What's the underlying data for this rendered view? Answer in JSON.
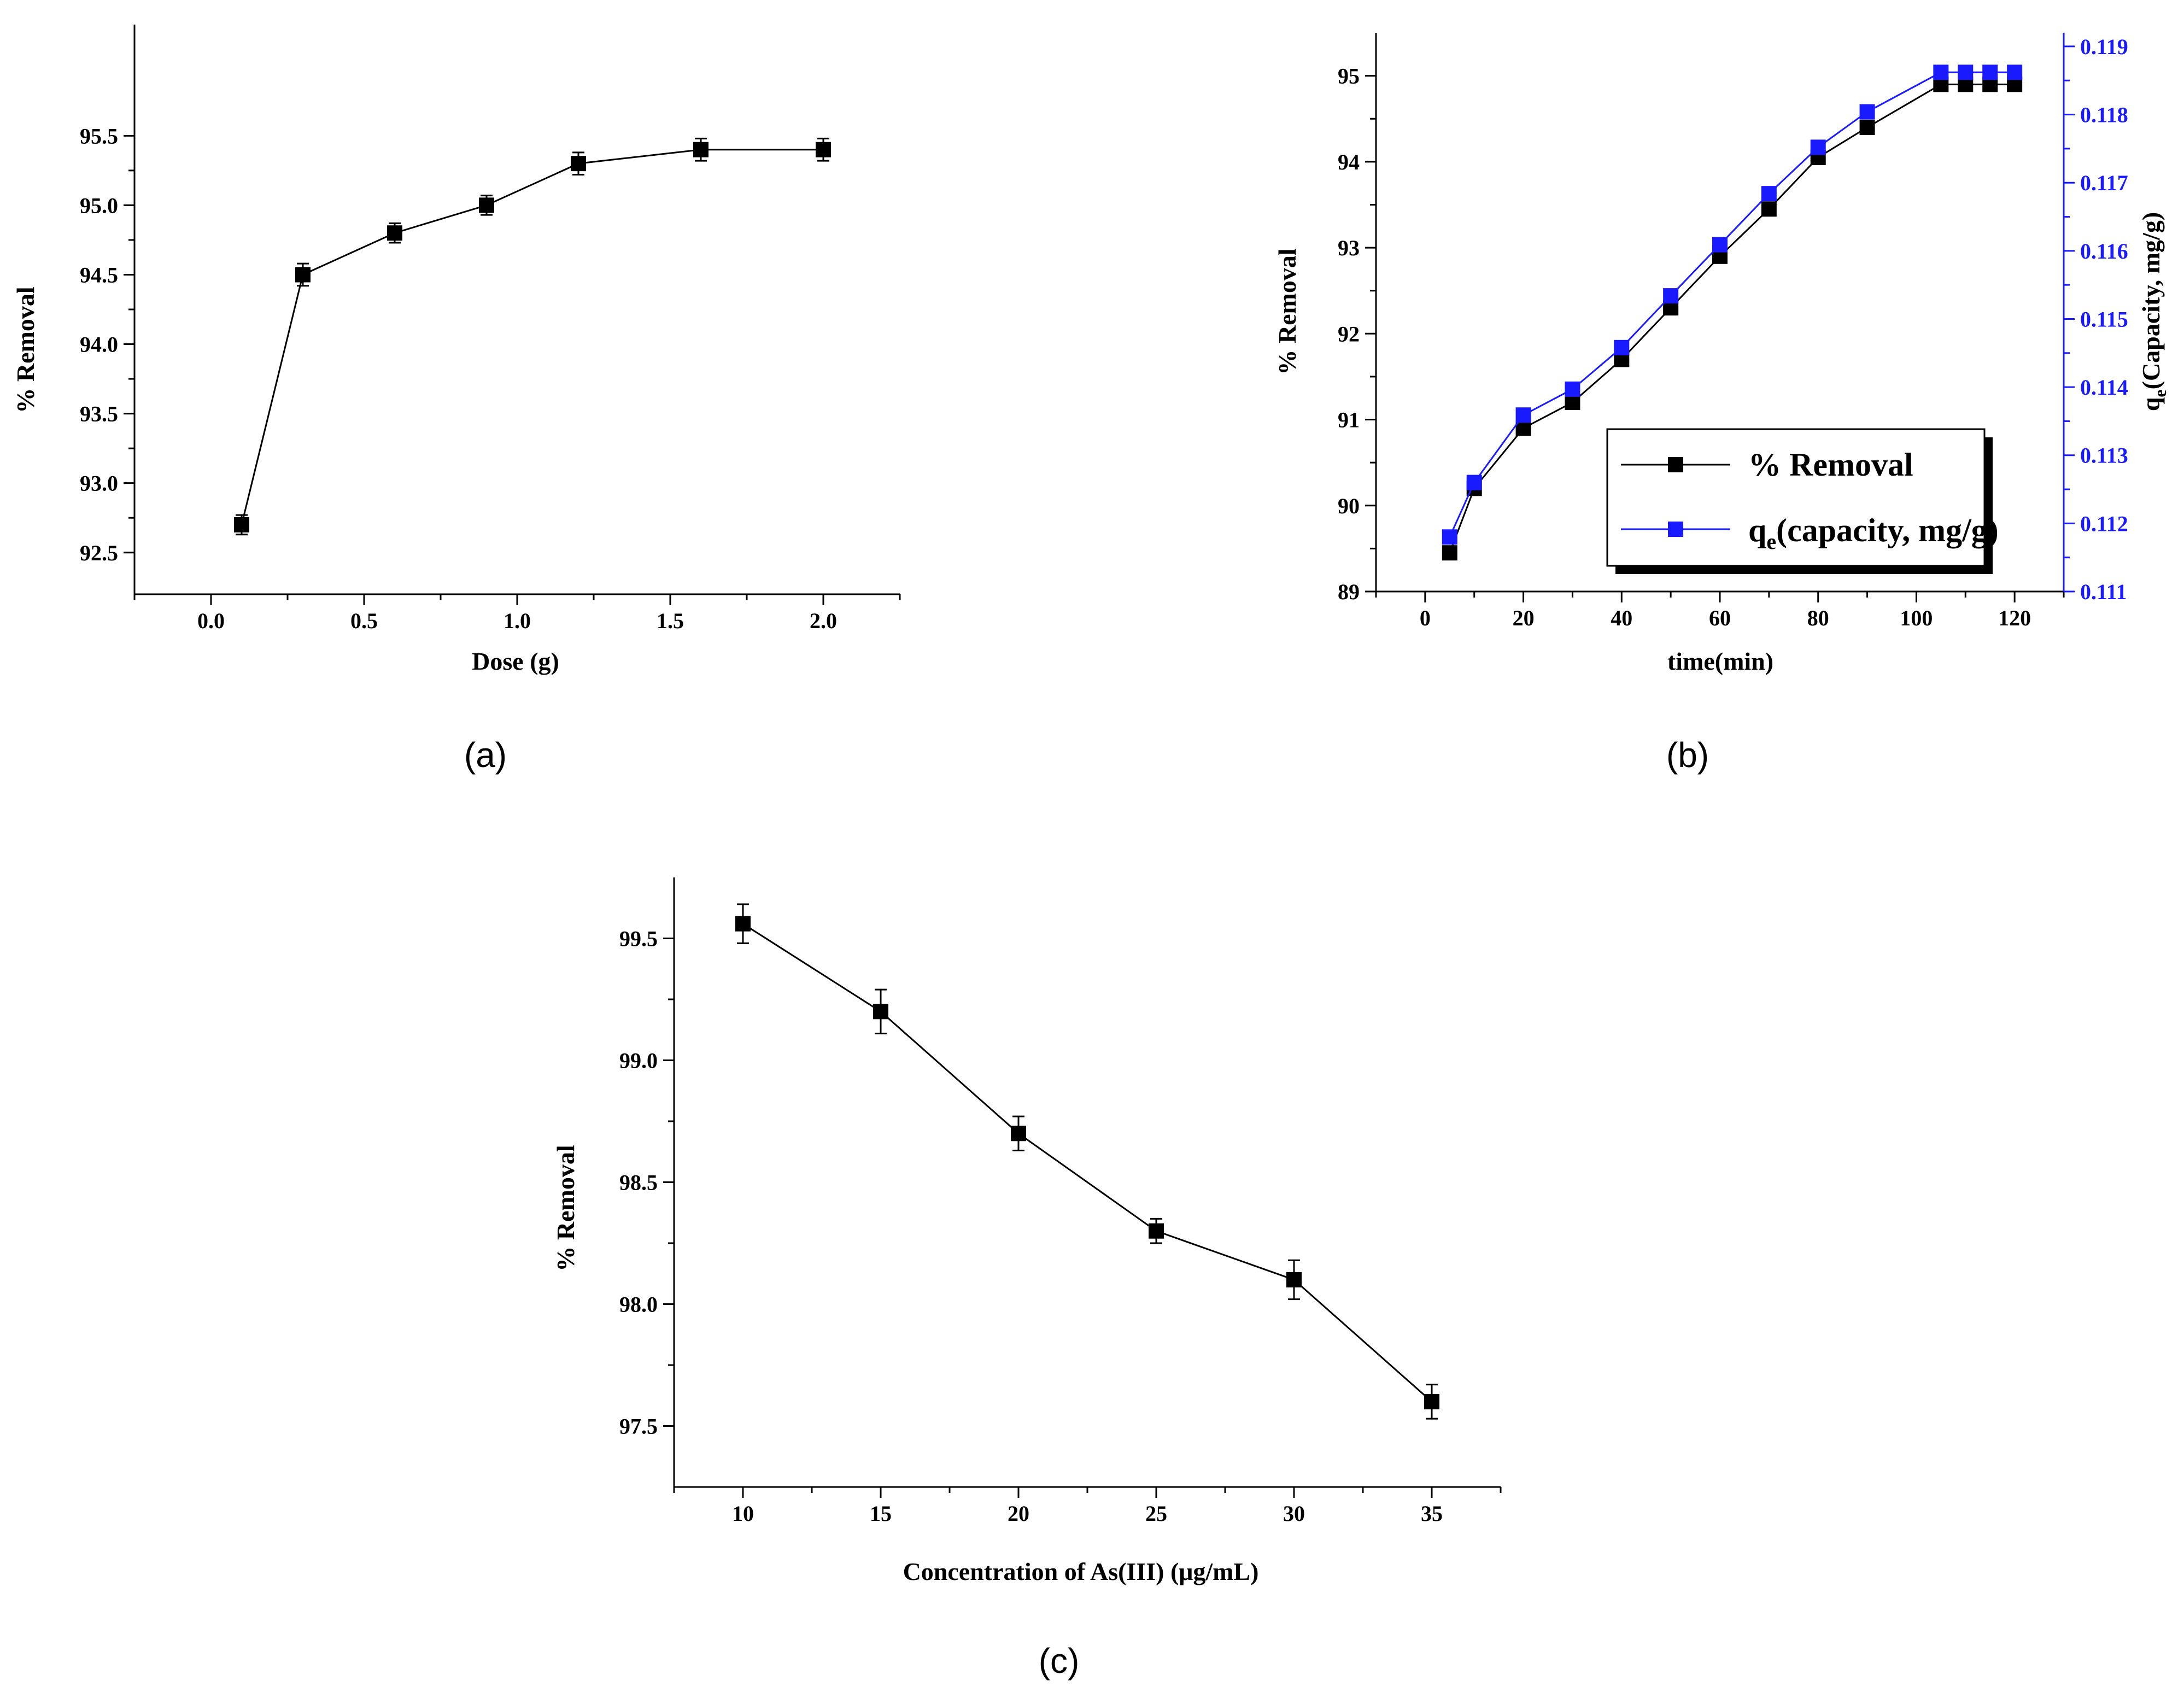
{
  "figure": {
    "panel_labels": {
      "a": "(a)",
      "b": "(b)",
      "c": "(c)"
    }
  },
  "colors": {
    "black": "#000000",
    "blue": "#1a1aff"
  },
  "chart_data": [
    {
      "id": "a",
      "type": "line",
      "title": "",
      "xlabel": "Dose (g)",
      "ylabel": "% Removal",
      "xlim": [
        -0.25,
        2.25
      ],
      "ylim": [
        92.2,
        96.3
      ],
      "xticks": [
        "0.0",
        "0.5",
        "1.0",
        "1.5",
        "2.0"
      ],
      "yticks": [
        "92.5",
        "93.0",
        "93.5",
        "94.0",
        "94.5",
        "95.0",
        "95.5"
      ],
      "grid": false,
      "series": [
        {
          "name": "% Removal",
          "x": [
            0.1,
            0.3,
            0.6,
            0.9,
            1.2,
            1.6,
            2.0
          ],
          "y": [
            92.7,
            94.5,
            94.8,
            95.0,
            95.3,
            95.4,
            95.4
          ],
          "yerr": [
            0.07,
            0.08,
            0.07,
            0.07,
            0.08,
            0.08,
            0.08
          ]
        }
      ]
    },
    {
      "id": "b",
      "type": "line",
      "title": "",
      "xlabel": "time(min)",
      "ylabel": "% Removal",
      "ylabel_right": "q",
      "ylabel_right_sub": "e",
      "ylabel_right_rest": "(Capacity, mg/g)",
      "xlim": [
        -10,
        130
      ],
      "ylim": [
        89,
        95.5
      ],
      "ylim_right": [
        0.111,
        0.1192
      ],
      "xticks": [
        "0",
        "20",
        "40",
        "60",
        "80",
        "100",
        "120"
      ],
      "yticks": [
        "89",
        "90",
        "91",
        "92",
        "93",
        "94",
        "95"
      ],
      "yticks_right": [
        "0.111",
        "0.112",
        "0.113",
        "0.114",
        "0.115",
        "0.116",
        "0.117",
        "0.118",
        "0.119"
      ],
      "grid": false,
      "legend": {
        "placement": "bottom-right",
        "entries": [
          {
            "label": "% Removal"
          },
          {
            "label_main": "q",
            "label_sub": "e",
            "label_rest": "(capacity, mg/g)"
          }
        ]
      },
      "series": [
        {
          "name": "% Removal",
          "axis": "left",
          "x": [
            5,
            10,
            20,
            30,
            40,
            50,
            60,
            70,
            80,
            90,
            105,
            110,
            115,
            120
          ],
          "y": [
            89.45,
            90.2,
            90.9,
            91.2,
            91.7,
            92.3,
            92.9,
            93.45,
            94.05,
            94.4,
            94.9,
            94.9,
            94.9,
            94.9
          ]
        },
        {
          "name": "qe (capacity, mg/g)",
          "axis": "right",
          "x": [
            5,
            10,
            20,
            30,
            40,
            50,
            60,
            70,
            80,
            90,
            105,
            110,
            115,
            120
          ],
          "y": [
            0.1118,
            0.1126,
            0.11359,
            0.11397,
            0.11458,
            0.11534,
            0.11609,
            0.11684,
            0.11752,
            0.11804,
            0.11862,
            0.11862,
            0.11862,
            0.11862
          ]
        }
      ]
    },
    {
      "id": "c",
      "type": "line",
      "title": "",
      "xlabel": "Concentration of As(III) (μg/mL)",
      "ylabel": "% Removal",
      "xlim": [
        7.5,
        37.5
      ],
      "ylim": [
        97.25,
        99.75
      ],
      "xticks": [
        "10",
        "15",
        "20",
        "25",
        "30",
        "35"
      ],
      "yticks": [
        "97.5",
        "98.0",
        "98.5",
        "99.0",
        "99.5"
      ],
      "grid": false,
      "series": [
        {
          "name": "% Removal",
          "x": [
            10,
            15,
            20,
            25,
            30,
            35
          ],
          "y": [
            99.56,
            99.2,
            98.7,
            98.3,
            98.1,
            97.6
          ],
          "yerr": [
            0.08,
            0.09,
            0.07,
            0.05,
            0.08,
            0.07
          ]
        }
      ]
    }
  ]
}
